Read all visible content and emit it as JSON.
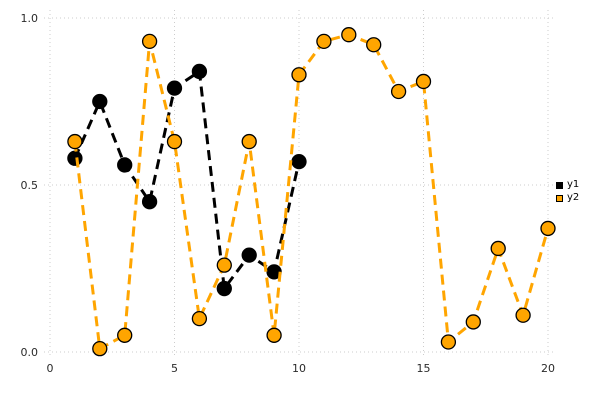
{
  "chart_data": {
    "type": "line",
    "title": "",
    "xlabel": "",
    "ylabel": "",
    "xlim": [
      0,
      20.6
    ],
    "ylim": [
      0,
      1.0
    ],
    "xticks": [
      0,
      5,
      10,
      15,
      20
    ],
    "xtick_labels": [
      "0",
      "5",
      "10",
      "15",
      "20"
    ],
    "yticks": [
      0,
      0.5,
      1
    ],
    "ytick_labels": [
      "0.0",
      "0.5",
      "1.0"
    ],
    "grid": true,
    "grid_color": "#cccccc",
    "background": "#ffffff",
    "line_style": "dashed",
    "marker": "circle",
    "legend_position": "right-outside",
    "series": [
      {
        "name": "y1",
        "color": "#000000",
        "x": [
          1,
          2,
          3,
          4,
          5,
          6,
          7,
          8,
          9,
          10
        ],
        "values": [
          0.58,
          0.75,
          0.56,
          0.45,
          0.79,
          0.84,
          0.19,
          0.29,
          0.24,
          0.57
        ]
      },
      {
        "name": "y2",
        "color": "#FFA500",
        "x": [
          1,
          2,
          3,
          4,
          5,
          6,
          7,
          8,
          9,
          10,
          11,
          12,
          13,
          14,
          15,
          16,
          17,
          18,
          19,
          20
        ],
        "values": [
          0.63,
          0.01,
          0.05,
          0.93,
          0.63,
          0.1,
          0.26,
          0.63,
          0.05,
          0.83,
          0.93,
          0.95,
          0.92,
          0.78,
          0.81,
          0.03,
          0.09,
          0.31,
          0.11,
          0.37
        ]
      }
    ]
  }
}
